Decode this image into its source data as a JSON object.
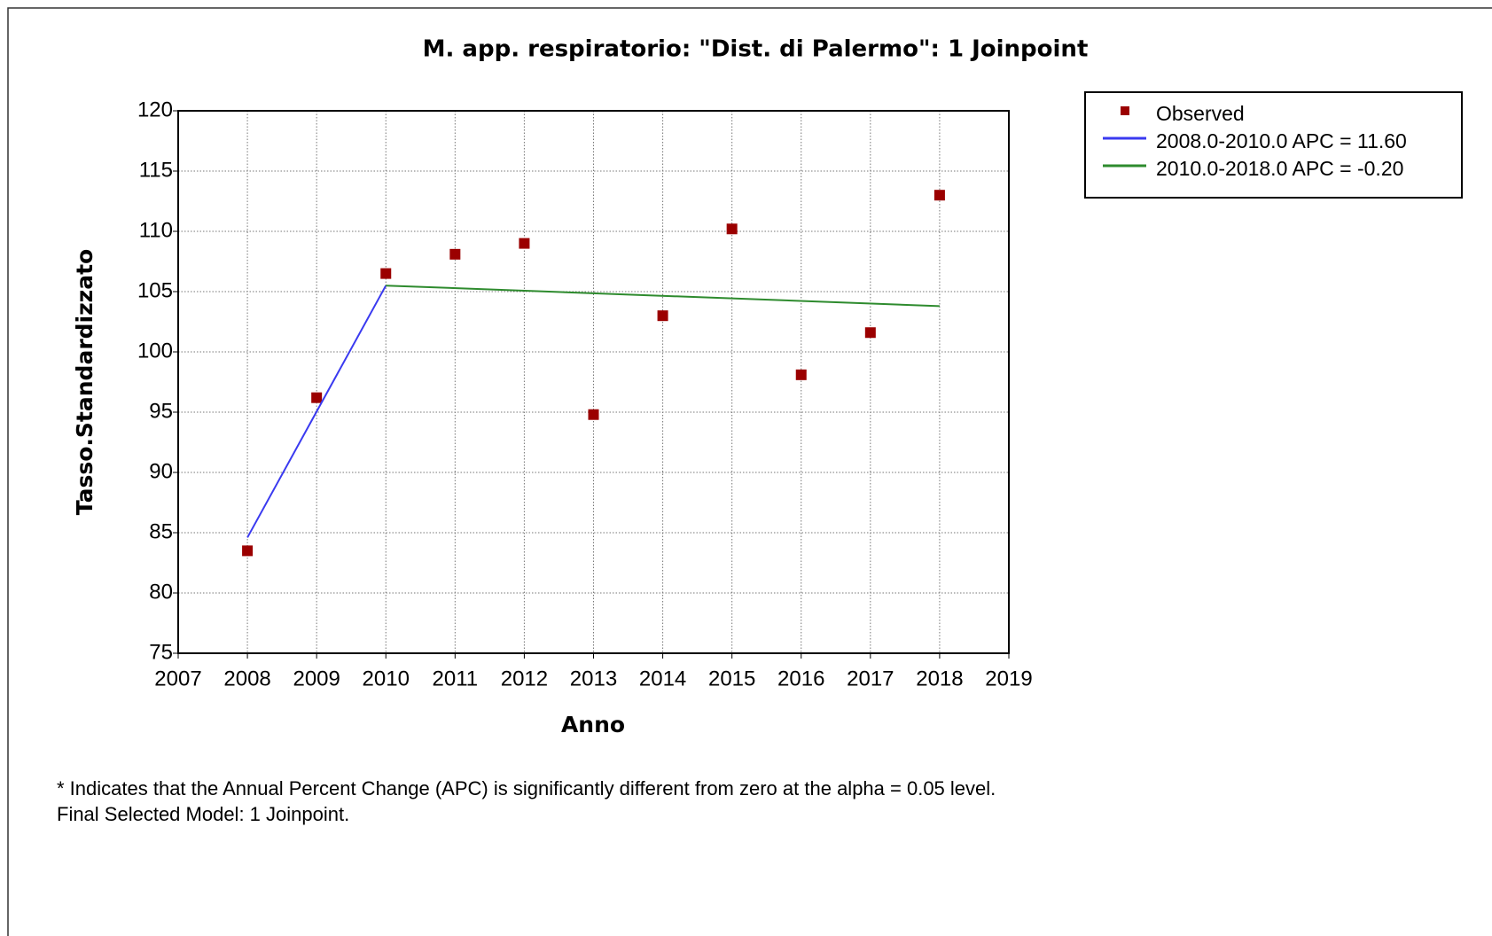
{
  "chart_data": {
    "type": "line",
    "title": "M. app. respiratorio: \"Dist. di Palermo\": 1 Joinpoint",
    "x_label": "Anno",
    "y_label": "Tasso.Standardizzato",
    "xlim": [
      2007,
      2019
    ],
    "xticks": [
      2007,
      2008,
      2009,
      2010,
      2011,
      2012,
      2013,
      2014,
      2015,
      2016,
      2017,
      2018,
      2019
    ],
    "ylim": [
      75,
      120
    ],
    "yticks": [
      75,
      80,
      85,
      90,
      95,
      100,
      105,
      110,
      115,
      120
    ],
    "grid": true,
    "legend": "outside-top-right",
    "series": [
      {
        "name": "Observed",
        "mode": "markers",
        "color": "#9b0000",
        "x": [
          2008,
          2009,
          2010,
          2011,
          2012,
          2013,
          2014,
          2015,
          2016,
          2017,
          2018
        ],
        "values": [
          83.5,
          96.2,
          106.5,
          108.1,
          109.0,
          94.8,
          103.0,
          110.2,
          98.1,
          101.6,
          113.0
        ]
      },
      {
        "name": "2008.0-2010.0 APC  = 11.60",
        "mode": "line",
        "color": "#3a3af0",
        "x": [
          2008,
          2010
        ],
        "values": [
          84.6,
          105.5
        ]
      },
      {
        "name": "2010.0-2018.0 APC  = -0.20",
        "mode": "line",
        "color": "#2e8b2e",
        "x": [
          2010,
          2018
        ],
        "values": [
          105.5,
          103.8
        ]
      }
    ],
    "notes": [
      "* Indicates that the Annual Percent Change (APC) is significantly different from zero at the alpha = 0.05 level.",
      "Final Selected Model: 1 Joinpoint."
    ]
  }
}
